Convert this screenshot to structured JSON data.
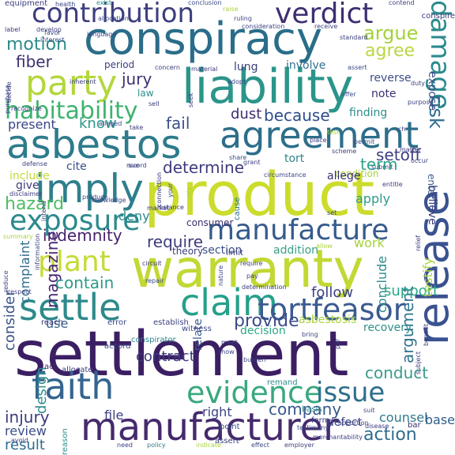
{
  "words": [
    {
      "text": "settlement",
      "color": "#3b1f63"
    },
    {
      "text": "warranty",
      "color": "#c2d834"
    },
    {
      "text": "product",
      "color": "#cbdc2c"
    },
    {
      "text": "conspiracy",
      "color": "#2a6d8a"
    },
    {
      "text": "liability",
      "color": "#2b958a"
    },
    {
      "text": "manufacturer",
      "color": "#452a6c"
    },
    {
      "text": "agreement",
      "color": "#2c6e8b"
    },
    {
      "text": "asbestos",
      "color": "#2d7b8c"
    },
    {
      "text": "party",
      "color": "#b3d73c"
    },
    {
      "text": "imply",
      "color": "#2e7f8c"
    },
    {
      "text": "claim",
      "color": "#25a08b"
    },
    {
      "text": "release",
      "color": "#3a5290"
    },
    {
      "text": "tortfeasor",
      "color": "#3b5a90"
    },
    {
      "text": "settle",
      "color": "#2e8a8c"
    },
    {
      "text": "evidence",
      "color": "#3aa87e"
    },
    {
      "text": "faith",
      "color": "#356590"
    },
    {
      "text": "exposure",
      "color": "#2b8a8d"
    },
    {
      "text": "manufacture",
      "color": "#365b8e"
    },
    {
      "text": "contribution",
      "color": "#3d3e7e"
    },
    {
      "text": "verdict",
      "color": "#3f2f72"
    },
    {
      "text": "plant",
      "color": "#c6da36"
    },
    {
      "text": "damage",
      "color": "#2c8a8d"
    },
    {
      "text": "habitability",
      "color": "#3fb26e"
    },
    {
      "text": "issue",
      "color": "#2d6f8d"
    },
    {
      "text": "argue",
      "color": "#a4d23a"
    },
    {
      "text": "agree",
      "color": "#b7d743"
    },
    {
      "text": "motion",
      "color": "#2d8c8b"
    },
    {
      "text": "fiber",
      "color": "#3e306f"
    },
    {
      "text": "jury",
      "color": "#3b2f70"
    },
    {
      "text": "because",
      "color": "#2f4d8a"
    },
    {
      "text": "dust",
      "color": "#3f2d6e"
    },
    {
      "text": "hazard",
      "color": "#50bd63"
    },
    {
      "text": "indemnity",
      "color": "#46236c"
    },
    {
      "text": "determine",
      "color": "#3f3a7b"
    },
    {
      "text": "fail",
      "color": "#3b4f8c"
    },
    {
      "text": "know",
      "color": "#2b978c"
    },
    {
      "text": "present",
      "color": "#3a4587"
    },
    {
      "text": "setoff",
      "color": "#3c3f80"
    },
    {
      "text": "term",
      "color": "#2ca487"
    },
    {
      "text": "risk",
      "color": "#2e6b8e"
    },
    {
      "text": "require",
      "color": "#3c3b7d"
    },
    {
      "text": "magazine",
      "color": "#482374"
    },
    {
      "text": "contain",
      "color": "#2f9a89"
    },
    {
      "text": "injury",
      "color": "#3b3c7d"
    },
    {
      "text": "action",
      "color": "#2e6d8e"
    },
    {
      "text": "company",
      "color": "#38598c"
    },
    {
      "text": "argument",
      "color": "#2e728e"
    },
    {
      "text": "consider",
      "color": "#3a5388"
    },
    {
      "text": "complaint",
      "color": "#2e6d8d"
    },
    {
      "text": "provide",
      "color": "#3b4a88"
    },
    {
      "text": "use",
      "color": "#39628c"
    },
    {
      "text": "follow",
      "color": "#3b4284"
    },
    {
      "text": "support",
      "color": "#2aa88a"
    },
    {
      "text": "conduct",
      "color": "#3a9b8b"
    },
    {
      "text": "result",
      "color": "#2e6c8e"
    },
    {
      "text": "review",
      "color": "#3c4f8b"
    },
    {
      "text": "design",
      "color": "#2e8c8d"
    },
    {
      "text": "counsel",
      "color": "#2e7a8e"
    },
    {
      "text": "right",
      "color": "#3c4486"
    },
    {
      "text": "base",
      "color": "#2b5e8a"
    },
    {
      "text": "file",
      "color": "#3a3f80"
    },
    {
      "text": "contract",
      "color": "#3d3a7e"
    },
    {
      "text": "deny",
      "color": "#2e898d"
    },
    {
      "text": "cite",
      "color": "#3a4f88"
    },
    {
      "text": "include",
      "color": "#c4da34"
    },
    {
      "text": "give",
      "color": "#3f3a7b"
    },
    {
      "text": "apply",
      "color": "#2f9a89"
    },
    {
      "text": "work",
      "color": "#a7d23c"
    },
    {
      "text": "testify",
      "color": "#aed442"
    },
    {
      "text": "conclude",
      "color": "#2f8c8c"
    },
    {
      "text": "addition",
      "color": "#3aa087"
    },
    {
      "text": "section",
      "color": "#3b5088"
    },
    {
      "text": "asbestosis",
      "color": "#aad43e"
    },
    {
      "text": "recovery",
      "color": "#2e8f8c"
    },
    {
      "text": "relate",
      "color": "#3c5a8c"
    },
    {
      "text": "decision",
      "color": "#2fa885"
    },
    {
      "text": "condition",
      "color": "#a8d33d"
    },
    {
      "text": "allege",
      "color": "#3a2f70"
    },
    {
      "text": "tort",
      "color": "#2f858d"
    },
    {
      "text": "lung",
      "color": "#3c3f7e"
    },
    {
      "text": "involve",
      "color": "#31708e"
    },
    {
      "text": "reverse",
      "color": "#3b4d88"
    },
    {
      "text": "note",
      "color": "#3b2f6e"
    },
    {
      "text": "expose",
      "color": "#3c4f8a"
    },
    {
      "text": "finding",
      "color": "#2f8e8c"
    },
    {
      "text": "period",
      "color": "#3b3d7e"
    },
    {
      "text": "law",
      "color": "#2f8f8c"
    },
    {
      "text": "consumer",
      "color": "#3b2e6e"
    },
    {
      "text": "theory",
      "color": "#3b3f7e"
    },
    {
      "text": "limit",
      "color": "#3b3a7c"
    },
    {
      "text": "believe",
      "color": "#3b3f7f"
    },
    {
      "text": "enter",
      "color": "#3a5c8c"
    },
    {
      "text": "cause",
      "color": "#2e708d"
    },
    {
      "text": "error",
      "color": "#3b4a86"
    },
    {
      "text": "establish",
      "color": "#3b3f7e"
    },
    {
      "text": "witness",
      "color": "#3a4a87"
    },
    {
      "text": "reach",
      "color": "#3b3a7c"
    },
    {
      "text": "conspirator",
      "color": "#2f848d"
    },
    {
      "text": "accord",
      "color": "#3b4a86"
    },
    {
      "text": "allocate",
      "color": "#3b3f7e"
    },
    {
      "text": "act",
      "color": "#3b2e6e"
    },
    {
      "text": "basis",
      "color": "#2f8a8c"
    },
    {
      "text": "remand",
      "color": "#2f8e8c"
    },
    {
      "text": "defect",
      "color": "#3b4486"
    },
    {
      "text": "form",
      "color": "#3b3f7e"
    },
    {
      "text": "bar",
      "color": "#3b2f70"
    },
    {
      "text": "reason",
      "color": "#2f8f8c"
    },
    {
      "text": "assert",
      "color": "#3b3f7e"
    },
    {
      "text": "point",
      "color": "#3b4a86"
    },
    {
      "text": "need",
      "color": "#3b4486"
    },
    {
      "text": "policy",
      "color": "#2f7a8d"
    },
    {
      "text": "indicate",
      "color": "#aad43e"
    },
    {
      "text": "effect",
      "color": "#3b4a86"
    },
    {
      "text": "employer",
      "color": "#3b3f7e"
    },
    {
      "text": "testimony",
      "color": "#3b4a86"
    },
    {
      "text": "merchantability",
      "color": "#3b4486"
    },
    {
      "text": "disease",
      "color": "#3b3a7c"
    },
    {
      "text": "equipment",
      "color": "#3b3f7e"
    },
    {
      "text": "health",
      "color": "#3b4486"
    },
    {
      "text": "exist",
      "color": "#2f8a8c"
    },
    {
      "text": "conclusion",
      "color": "#3b4a86"
    },
    {
      "text": "contend",
      "color": "#3b3f7e"
    },
    {
      "text": "conspire",
      "color": "#3b3a7c"
    },
    {
      "text": "raise",
      "color": "#aad43e"
    },
    {
      "text": "ruling",
      "color": "#3b4486"
    },
    {
      "text": "receive",
      "color": "#3b3f7e"
    },
    {
      "text": "favor",
      "color": "#3b4a86"
    },
    {
      "text": "label",
      "color": "#3b3a7c"
    },
    {
      "text": "develop",
      "color": "#3b3f7e"
    },
    {
      "text": "consideration",
      "color": "#3b4486"
    },
    {
      "text": "standard",
      "color": "#3b3f7e"
    },
    {
      "text": "language",
      "color": "#3b4486"
    },
    {
      "text": "concern",
      "color": "#3b3f7e"
    },
    {
      "text": "material",
      "color": "#3b3a7c"
    },
    {
      "text": "assert",
      "color": "#3b4a86"
    },
    {
      "text": "duty",
      "color": "#3b3f7e"
    },
    {
      "text": "purchase",
      "color": "#3b4486"
    },
    {
      "text": "decide",
      "color": "#3b3f7e"
    },
    {
      "text": "sell",
      "color": "#3b3a7c"
    },
    {
      "text": "offer",
      "color": "#3b4a86"
    },
    {
      "text": "purpose",
      "color": "#3b3f7e"
    },
    {
      "text": "recognize",
      "color": "#3b4486"
    },
    {
      "text": "seek",
      "color": "#3b3f7e"
    },
    {
      "text": "take",
      "color": "#3b3a7c"
    },
    {
      "text": "share",
      "color": "#3b4a86"
    },
    {
      "text": "grant",
      "color": "#3b3f7e"
    },
    {
      "text": "circumstance",
      "color": "#3b4486"
    },
    {
      "text": "defense",
      "color": "#3b3f7e"
    },
    {
      "text": "disclaimer",
      "color": "#3b3a7c"
    },
    {
      "text": "record",
      "color": "#3b4a86"
    },
    {
      "text": "submit",
      "color": "#3b3f7e"
    },
    {
      "text": "produce",
      "color": "#3b4486"
    },
    {
      "text": "knowledge",
      "color": "#3b3f7e"
    },
    {
      "text": "intend",
      "color": "#3b3a7c"
    },
    {
      "text": "summary",
      "color": "#aad43e"
    },
    {
      "text": "information",
      "color": "#3b4a86"
    },
    {
      "text": "market",
      "color": "#3b3f7e"
    },
    {
      "text": "reduce",
      "color": "#3b4486"
    },
    {
      "text": "respect",
      "color": "#3b3f7e"
    },
    {
      "text": "circuit",
      "color": "#3b3a7c"
    },
    {
      "text": "repair",
      "color": "#3b4a86"
    },
    {
      "text": "require",
      "color": "#3b3f7e"
    },
    {
      "text": "pay",
      "color": "#3b4486"
    },
    {
      "text": "determination",
      "color": "#3b3f7e"
    },
    {
      "text": "benefit",
      "color": "#3b3a7c"
    },
    {
      "text": "bring",
      "color": "#3b4a86"
    },
    {
      "text": "meet",
      "color": "#3b3f7e"
    },
    {
      "text": "show",
      "color": "#3b4486"
    },
    {
      "text": "burden",
      "color": "#3b3f7e"
    },
    {
      "text": "allow",
      "color": "#aad43e"
    },
    {
      "text": "allocation",
      "color": "#3b4a86"
    },
    {
      "text": "par",
      "color": "#3b3f7e"
    },
    {
      "text": "adopt",
      "color": "#3b4486"
    },
    {
      "text": "scheme",
      "color": "#3b3f7e"
    },
    {
      "text": "place",
      "color": "#3b3a7c"
    },
    {
      "text": "test",
      "color": "#aad43e"
    },
    {
      "text": "ch",
      "color": "#3b3f7e"
    },
    {
      "text": "set",
      "color": "#3b4486"
    },
    {
      "text": "rely",
      "color": "#aad43e"
    },
    {
      "text": "subject",
      "color": "#3b3f7e"
    },
    {
      "text": "matter",
      "color": "#3b3a7c"
    },
    {
      "text": "permit",
      "color": "#3b4a86"
    },
    {
      "text": "entitle",
      "color": "#3b3f7e"
    },
    {
      "text": "nature",
      "color": "#3b4486"
    },
    {
      "text": "occur",
      "color": "#3b3f7e"
    },
    {
      "text": "connection",
      "color": "#3b3a7c"
    },
    {
      "text": "your",
      "color": "#3b4a86"
    },
    {
      "text": "relief",
      "color": "#3b3f7e"
    },
    {
      "text": "suit",
      "color": "#3b4486"
    },
    {
      "text": "apportion",
      "color": "#3b3f7e"
    },
    {
      "text": "avoid",
      "color": "#3b3a7c"
    },
    {
      "text": "interest",
      "color": "#3b4a86"
    },
    {
      "text": "inherent",
      "color": "#3b3f7e"
    },
    {
      "text": "alleged",
      "color": "#3b4486"
    },
    {
      "text": "sue",
      "color": "#3b3f7e"
    },
    {
      "text": "instance",
      "color": "#3b3a7c"
    }
  ]
}
